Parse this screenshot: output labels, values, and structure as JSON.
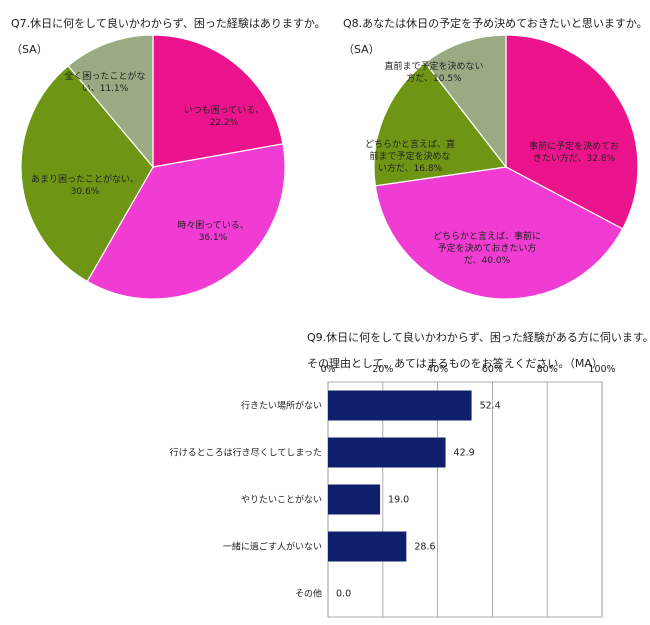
{
  "chart_data": [
    {
      "type": "pie",
      "title": "Q7.休日に何をして良いかわからず、困った経験はありますか。",
      "subtitle": "（SA）",
      "slices": [
        {
          "label": [
            "いつも困っている、",
            "22.2%"
          ],
          "value": 22.2,
          "color": "#ec148c"
        },
        {
          "label": [
            "時々困っている、",
            "36.1%"
          ],
          "value": 36.1,
          "color": "#f03cd2"
        },
        {
          "label": [
            "あまり困ったことがない、",
            "30.6%"
          ],
          "value": 30.6,
          "color": "#6e9614"
        },
        {
          "label": [
            "全く困ったことがな",
            "い、11.1%"
          ],
          "value": 11.1,
          "color": "#9aab84"
        }
      ]
    },
    {
      "type": "pie",
      "title": "Q8.あなたは休日の予定を予め決めておきたいと思いますか。",
      "subtitle": "（SA）",
      "slices": [
        {
          "label": [
            "事前に予定を決めてお",
            "きたい方だ、32.8%"
          ],
          "value": 32.8,
          "color": "#ec148c"
        },
        {
          "label": [
            "どちらかと言えば、事前に",
            "予定を決めておきたい方",
            "だ、40.0%"
          ],
          "value": 40.0,
          "color": "#f03cd2"
        },
        {
          "label": [
            "どちらかと言えば、直",
            "前まで予定を決めな",
            "い方だ、16.8%"
          ],
          "value": 16.8,
          "color": "#6e9614"
        },
        {
          "label": [
            "直前まで予定を決めない",
            "方だ、10.5%"
          ],
          "value": 10.5,
          "color": "#9aab84"
        }
      ]
    },
    {
      "type": "bar",
      "orientation": "horizontal",
      "title": "Q9.休日に何をして良いかわからず、困った経験がある方に伺います。",
      "subtitle": "その理由として、あてはまるものをお答えください。（MA）",
      "categories": [
        "行きたい場所がない",
        "行けるところは行き尽くしてしまった",
        "やりたいことがない",
        "一緒に過ごす人がいない",
        "その他"
      ],
      "values": [
        52.4,
        42.9,
        19.0,
        28.6,
        0.0
      ],
      "value_labels": [
        "52.4",
        "42.9",
        "19.0",
        "28.6",
        "0.0"
      ],
      "xticks": [
        "0%",
        "20%",
        "40%",
        "60%",
        "80%",
        "100%"
      ],
      "xlim": [
        0,
        100
      ],
      "bar_color": "#0f1f6b",
      "grid": true
    }
  ]
}
